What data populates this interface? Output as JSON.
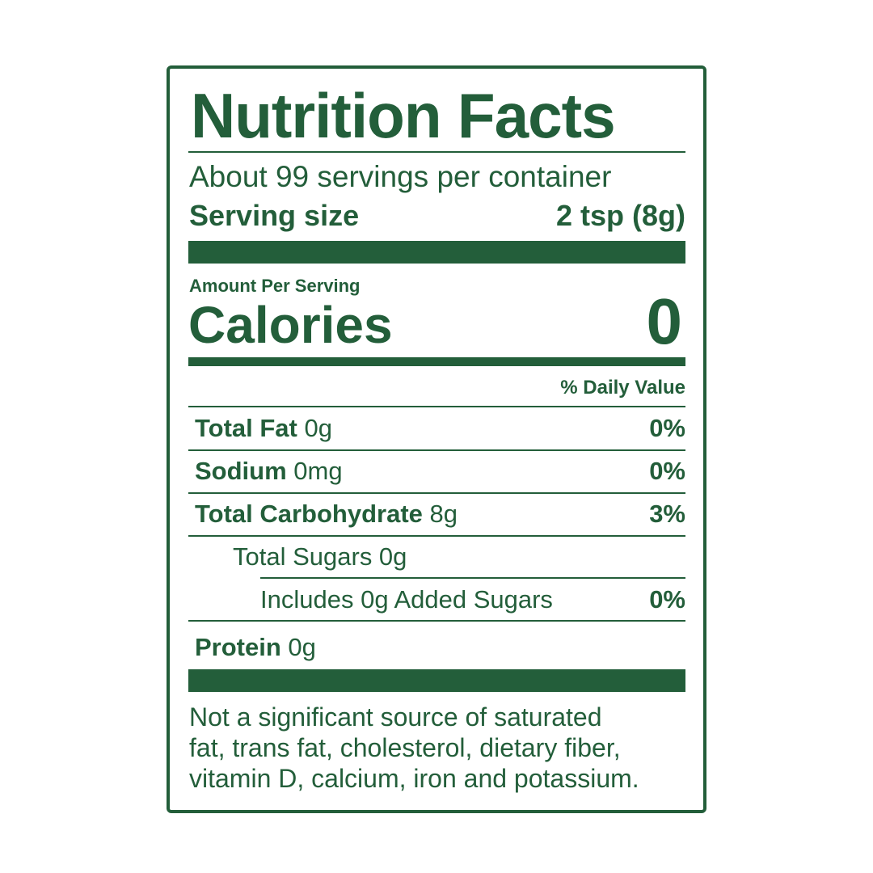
{
  "title": "Nutrition Facts",
  "servings": "About 99 servings per container",
  "serving_size": {
    "label": "Serving size",
    "value": "2 tsp (8g)"
  },
  "amount_per_serving": "Amount Per Serving",
  "calories": {
    "label": "Calories",
    "value": "0"
  },
  "daily_value_header": "% Daily Value",
  "nutrients": [
    {
      "name": "Total Fat",
      "amount": "0g",
      "dv": "0%"
    },
    {
      "name": "Sodium",
      "amount": "0mg",
      "dv": "0%"
    },
    {
      "name": "Total Carbohydrate",
      "amount": "8g",
      "dv": "3%"
    },
    {
      "name": "Total Sugars 0g"
    },
    {
      "name": "Includes 0g Added Sugars",
      "dv": "0%"
    },
    {
      "name": "Protein",
      "amount": "0g"
    }
  ],
  "footnote": [
    "Not a significant source of saturated",
    "fat, trans fat, cholesterol, dietary fiber,",
    "vitamin D, calcium, iron and potassium."
  ],
  "colors": {
    "ink": "#235e3a",
    "background": "#ffffff"
  }
}
